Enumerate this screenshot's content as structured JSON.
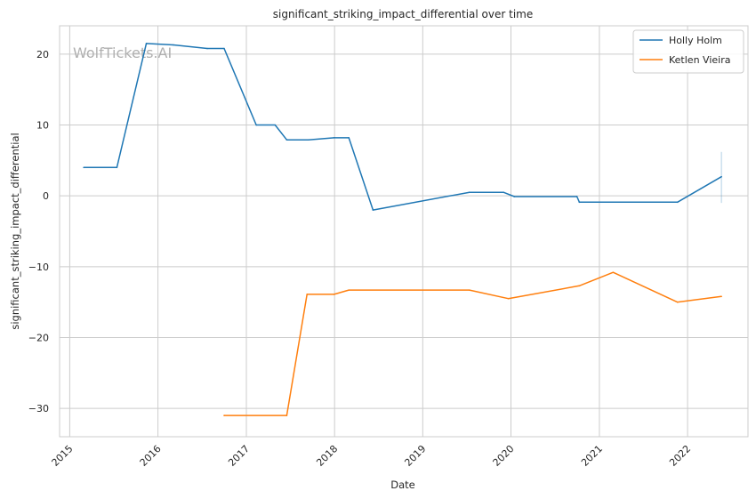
{
  "chart_data": {
    "type": "line",
    "title": "significant_striking_impact_differential over time",
    "xlabel": "Date",
    "ylabel": "significant_striking_impact_differential",
    "watermark": "WolfTickets.AI",
    "x_ticks": [
      "2015",
      "2016",
      "2017",
      "2018",
      "2019",
      "2020",
      "2021",
      "2022"
    ],
    "y_ticks": [
      20,
      10,
      0,
      -10,
      -20,
      -30
    ],
    "y_tick_labels": [
      "20",
      "10",
      "0",
      "−10",
      "−20",
      "−30"
    ],
    "xlim": [
      "2014-11-20",
      "2022-09-08"
    ],
    "ylim": [
      -34,
      24
    ],
    "grid": true,
    "legend_position": "top-right",
    "series": [
      {
        "name": "Holly Holm",
        "color": "#1f77b4",
        "points": [
          [
            "2015-02-28",
            4.0
          ],
          [
            "2015-07-15",
            4.0
          ],
          [
            "2015-11-14",
            21.5
          ],
          [
            "2016-03-05",
            21.3
          ],
          [
            "2016-07-23",
            20.8
          ],
          [
            "2016-10-01",
            20.8
          ],
          [
            "2017-02-11",
            10.0
          ],
          [
            "2017-04-30",
            10.0
          ],
          [
            "2017-06-17",
            7.9
          ],
          [
            "2017-09-15",
            7.9
          ],
          [
            "2017-12-30",
            8.2
          ],
          [
            "2018-03-01",
            8.2
          ],
          [
            "2018-06-09",
            -2.0
          ],
          [
            "2019-07-13",
            0.5
          ],
          [
            "2019-12-01",
            0.5
          ],
          [
            "2020-01-15",
            -0.1
          ],
          [
            "2020-09-30",
            -0.1
          ],
          [
            "2020-10-10",
            -0.9
          ],
          [
            "2021-11-20",
            -0.9
          ],
          [
            "2022-05-21",
            2.7
          ]
        ]
      },
      {
        "name": "Ketlen Vieira",
        "color": "#ff7f0e",
        "points": [
          [
            "2016-10-01",
            -31.0
          ],
          [
            "2017-06-17",
            -31.0
          ],
          [
            "2017-09-09",
            -13.9
          ],
          [
            "2017-12-30",
            -13.9
          ],
          [
            "2018-03-01",
            -13.3
          ],
          [
            "2019-07-13",
            -13.3
          ],
          [
            "2019-12-21",
            -14.5
          ],
          [
            "2020-10-10",
            -12.7
          ],
          [
            "2021-02-27",
            -10.8
          ],
          [
            "2021-11-20",
            -15.0
          ],
          [
            "2022-05-21",
            -14.2
          ]
        ]
      }
    ],
    "errorbar": {
      "x": "2022-05-21",
      "y_low": -1.0,
      "y_high": 6.2
    }
  }
}
